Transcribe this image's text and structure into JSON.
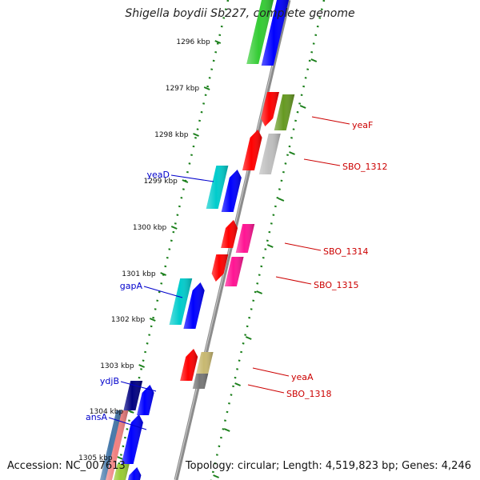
{
  "title": "Shigella boydii Sb227, complete genome",
  "accession": "Accession: NC_007613",
  "stats": "Topology: circular; Length: 4,519,823 bp; Genes: 4,246",
  "colors": {
    "axis": "#8c8c8c",
    "tick": "#1a7f1a",
    "left_label": "#0000cc",
    "right_label": "#cc0000"
  },
  "chart_data": {
    "type": "genome_map",
    "ticks": [
      "1296 kbp",
      "1297 kbp",
      "1298 kbp",
      "1299 kbp",
      "1300 kbp",
      "1301 kbp",
      "1302 kbp",
      "1303 kbp",
      "1304 kbp",
      "1305 kbp"
    ],
    "left_labels": [
      "yeaD",
      "gapA",
      "ydjB",
      "ansA"
    ],
    "right_labels": [
      "yeaF",
      "SBO_1312",
      "SBO_1314",
      "SBO_1315",
      "yeaA",
      "SBO_1318"
    ]
  }
}
